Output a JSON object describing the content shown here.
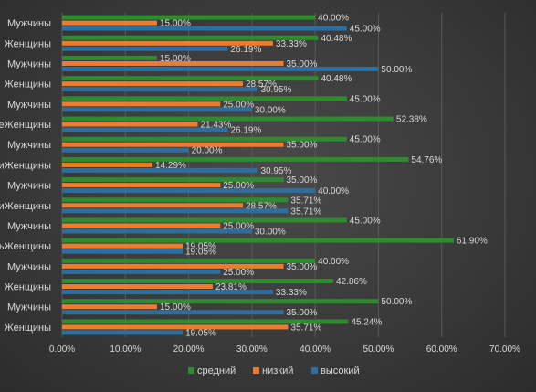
{
  "chart_data": {
    "type": "bar",
    "orientation": "horizontal",
    "categories": [
      "Мужчины",
      "Женщины",
      "Мужчины",
      "Женщины",
      "Мужчины",
      "Женщины",
      "Мужчины",
      "Женщины",
      "Мужчины",
      "Женщины",
      "Мужчины",
      "Женщины",
      "Мужчины",
      "Женщины",
      "Мужчины",
      "Женщины"
    ],
    "category_label_prefixes": [
      "",
      "",
      "",
      "",
      "",
      "е",
      "",
      "и",
      "",
      "и",
      "",
      "ь",
      "",
      "",
      "",
      ""
    ],
    "series": [
      {
        "name": "средний",
        "color": "#2e8b2e",
        "values": [
          40.0,
          40.48,
          15.0,
          40.48,
          45.0,
          52.38,
          45.0,
          54.76,
          35.0,
          35.71,
          45.0,
          61.9,
          40.0,
          42.86,
          50.0,
          45.24
        ]
      },
      {
        "name": "низкий",
        "color": "#f07b2c",
        "values": [
          15.0,
          33.33,
          35.0,
          28.57,
          25.0,
          21.43,
          35.0,
          14.29,
          25.0,
          28.57,
          25.0,
          19.05,
          35.0,
          23.81,
          15.0,
          35.71
        ]
      },
      {
        "name": "высокий",
        "color": "#2e6e9e",
        "values": [
          45.0,
          26.19,
          50.0,
          30.95,
          30.0,
          26.19,
          20.0,
          30.95,
          40.0,
          35.71,
          30.0,
          19.05,
          25.0,
          33.33,
          35.0,
          19.05
        ]
      }
    ],
    "xlim": [
      0,
      70
    ],
    "xticks": [
      "0.00%",
      "10.00%",
      "20.00%",
      "30.00%",
      "40.00%",
      "50.00%",
      "60.00%",
      "70.00%"
    ],
    "value_format": "percent-2dp",
    "grid": true,
    "legend_position": "bottom"
  }
}
